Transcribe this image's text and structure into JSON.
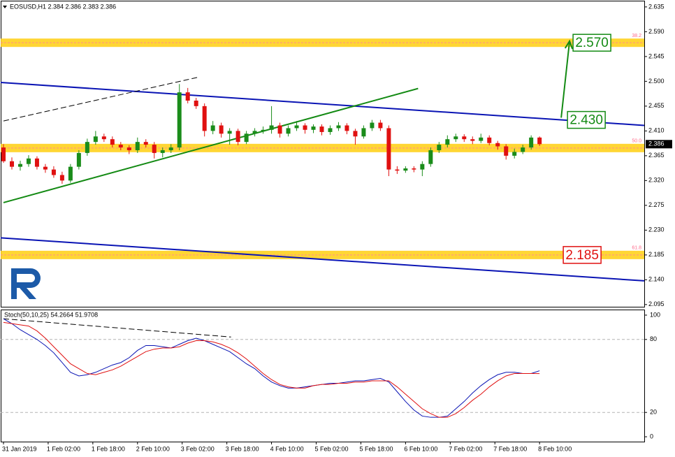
{
  "chart_data": [
    {
      "type": "candlestick",
      "title": "EOSUSD,H1  2.384 2.386 2.383 2.386",
      "x": [
        0,
        3,
        6,
        9,
        12,
        15,
        18,
        21,
        24,
        27,
        30,
        33,
        36,
        39,
        42,
        45,
        48,
        51,
        54,
        57,
        60,
        63,
        66,
        69,
        72,
        75,
        78,
        81,
        84,
        87,
        90,
        93,
        96,
        99,
        102,
        105,
        108,
        111,
        114,
        117,
        120,
        123,
        126,
        129,
        132,
        135,
        138,
        141,
        144,
        147,
        150,
        153,
        156,
        159,
        162,
        165,
        168,
        171,
        174,
        177,
        180,
        183,
        186,
        189,
        192
      ],
      "open": [
        2.38,
        2.355,
        2.345,
        2.35,
        2.36,
        2.345,
        2.34,
        2.33,
        2.32,
        2.345,
        2.37,
        2.39,
        2.4,
        2.395,
        2.385,
        2.38,
        2.375,
        2.39,
        2.385,
        2.37,
        2.375,
        2.38,
        2.48,
        2.465,
        2.455,
        2.41,
        2.42,
        2.405,
        2.41,
        2.39,
        2.405,
        2.41,
        2.412,
        2.42,
        2.405,
        2.415,
        2.42,
        2.412,
        2.418,
        2.408,
        2.415,
        2.42,
        2.41,
        2.4,
        2.415,
        2.425,
        2.415,
        2.34,
        2.338,
        2.342,
        2.34,
        2.35,
        2.375,
        2.385,
        2.395,
        2.4,
        2.395,
        2.392,
        2.398,
        2.388,
        2.382,
        2.365,
        2.372,
        2.38,
        2.398
      ],
      "high": [
        2.386,
        2.362,
        2.356,
        2.366,
        2.364,
        2.35,
        2.346,
        2.336,
        2.35,
        2.375,
        2.396,
        2.41,
        2.405,
        2.4,
        2.39,
        2.384,
        2.398,
        2.395,
        2.39,
        2.38,
        2.386,
        2.495,
        2.488,
        2.47,
        2.46,
        2.428,
        2.425,
        2.415,
        2.414,
        2.41,
        2.415,
        2.418,
        2.455,
        2.425,
        2.42,
        2.428,
        2.424,
        2.422,
        2.422,
        2.42,
        2.426,
        2.424,
        2.414,
        2.42,
        2.43,
        2.43,
        2.42,
        2.346,
        2.346,
        2.346,
        2.355,
        2.38,
        2.39,
        2.402,
        2.405,
        2.404,
        2.4,
        2.405,
        2.402,
        2.392,
        2.386,
        2.378,
        2.385,
        2.402,
        2.4
      ],
      "low": [
        2.352,
        2.34,
        2.338,
        2.345,
        2.34,
        2.334,
        2.325,
        2.314,
        2.316,
        2.34,
        2.365,
        2.385,
        2.39,
        2.38,
        2.375,
        2.368,
        2.37,
        2.38,
        2.36,
        2.362,
        2.37,
        2.375,
        2.46,
        2.45,
        2.4,
        2.404,
        2.398,
        2.385,
        2.384,
        2.386,
        2.4,
        2.405,
        2.405,
        2.398,
        2.4,
        2.41,
        2.405,
        2.406,
        2.402,
        2.403,
        2.41,
        2.404,
        2.385,
        2.396,
        2.41,
        2.41,
        2.328,
        2.332,
        2.334,
        2.335,
        2.328,
        2.345,
        2.37,
        2.38,
        2.39,
        2.39,
        2.386,
        2.388,
        2.384,
        2.376,
        2.358,
        2.36,
        2.368,
        2.376,
        2.383
      ],
      "close": [
        2.355,
        2.345,
        2.35,
        2.36,
        2.345,
        2.34,
        2.33,
        2.32,
        2.345,
        2.37,
        2.39,
        2.4,
        2.395,
        2.385,
        2.38,
        2.375,
        2.39,
        2.385,
        2.37,
        2.375,
        2.38,
        2.48,
        2.465,
        2.455,
        2.41,
        2.42,
        2.405,
        2.41,
        2.39,
        2.405,
        2.41,
        2.412,
        2.42,
        2.405,
        2.415,
        2.42,
        2.412,
        2.418,
        2.408,
        2.415,
        2.42,
        2.41,
        2.4,
        2.415,
        2.425,
        2.415,
        2.34,
        2.338,
        2.342,
        2.34,
        2.35,
        2.375,
        2.385,
        2.395,
        2.4,
        2.395,
        2.392,
        2.398,
        2.388,
        2.382,
        2.365,
        2.372,
        2.38,
        2.398,
        2.386
      ],
      "up_color": "#1a8c1a",
      "down_color": "#e01010",
      "xlim": [
        -1,
        229.5
      ],
      "ylim": [
        2.091,
        2.645
      ],
      "yticks": [
        2.635,
        {
          "value": 2.59,
          "label": "2.590"
        },
        2.545,
        {
          "value": 2.5,
          "label": "2.500"
        },
        2.455,
        {
          "value": 2.41,
          "label": "2.410"
        },
        2.365,
        {
          "value": 2.32,
          "label": "2.320"
        },
        2.275,
        {
          "value": 2.23,
          "label": "2.230"
        },
        2.185,
        {
          "value": 2.14,
          "label": "2.140"
        },
        2.095
      ],
      "trendlines": [
        {
          "x": [
            -1,
            229.5
          ],
          "y": [
            2.498,
            2.42
          ],
          "color": "#0a14b4",
          "dashed": false
        },
        {
          "x": [
            0,
            148.5
          ],
          "y": [
            2.28,
            2.487
          ],
          "color": "#138a13",
          "dashed": false
        },
        {
          "x": [
            0,
            70.25
          ],
          "y": [
            2.428,
            2.508
          ],
          "color": "#000000",
          "dashed": true
        },
        {
          "x": [
            -1,
            229.5
          ],
          "y": [
            2.216,
            2.138
          ],
          "color": "#0a14b4",
          "dashed": false
        }
      ],
      "levels": [
        {
          "value": 2.57,
          "label": "38.2"
        },
        {
          "value": 2.379,
          "label": "50.0"
        },
        {
          "value": 2.185,
          "label": "61.8"
        }
      ],
      "level_color": "#ffd21e",
      "annotations": [
        {
          "x": 204,
          "value": 2.57,
          "label": "2.570",
          "color": "#138a13"
        },
        {
          "x": 202,
          "value": 2.43,
          "label": "2.430",
          "color": "#138a13"
        },
        {
          "x": 200.5,
          "value": 2.185,
          "label": "2.185",
          "color": "#e01010"
        }
      ],
      "arrow": {
        "x": [
          199.75,
          202.75
        ],
        "y": [
          2.434,
          2.573
        ],
        "color": "#138a13"
      },
      "last_price": {
        "value": 2.386,
        "label": "2.386"
      }
    },
    {
      "type": "line",
      "title": "Stoch(50,10,25) 54.2664 51.9708",
      "x": [
        0,
        3,
        6,
        9,
        12,
        15,
        18,
        21,
        24,
        27,
        30,
        33,
        36,
        39,
        42,
        45,
        48,
        51,
        54,
        57,
        60,
        63,
        66,
        69,
        72,
        75,
        78,
        81,
        84,
        87,
        90,
        93,
        96,
        99,
        102,
        105,
        108,
        111,
        114,
        117,
        120,
        123,
        126,
        129,
        132,
        135,
        138,
        141,
        144,
        147,
        150,
        153,
        156,
        159,
        162,
        165,
        168,
        171,
        174,
        177,
        180,
        183,
        186,
        189,
        192
      ],
      "series": [
        {
          "color": "#0a14b4",
          "values": [
            97,
            93,
            88,
            84,
            80,
            75,
            69,
            61,
            53,
            50,
            51,
            53,
            56,
            59,
            61,
            65,
            71,
            75,
            75,
            74,
            73,
            76,
            79,
            81,
            79,
            76,
            73,
            70,
            65,
            60,
            56,
            50,
            45,
            42,
            40,
            40,
            41,
            42,
            43,
            44,
            44,
            45,
            46,
            46,
            47,
            48,
            45,
            37,
            29,
            22,
            17,
            16,
            16,
            17,
            23,
            29,
            36,
            42,
            47,
            51,
            53,
            53,
            52,
            52,
            54.2664
          ]
        },
        {
          "color": "#e01010",
          "values": [
            94,
            93,
            92,
            91,
            87,
            81,
            74,
            67,
            60,
            56,
            52,
            51,
            53,
            55,
            58,
            62,
            66,
            70,
            72,
            73,
            73,
            74,
            77,
            79,
            79,
            78,
            76,
            73,
            69,
            64,
            58,
            52,
            47,
            43,
            41,
            40,
            40,
            42,
            43,
            43,
            44,
            44,
            45,
            45,
            46,
            46,
            46,
            41,
            35,
            29,
            23,
            19,
            16,
            16,
            19,
            24,
            30,
            35,
            41,
            46,
            50,
            52,
            52,
            52,
            51.9708
          ]
        }
      ],
      "xlim": [
        -1,
        229.5
      ],
      "ylim": [
        -4,
        104
      ],
      "yticks": [
        100,
        80,
        20,
        0
      ],
      "levels": [
        80,
        20
      ],
      "trendlines": [
        {
          "x": [
            0,
            81.5
          ],
          "y": [
            97,
            82
          ],
          "color": "#000000",
          "dashed": true
        }
      ],
      "xticks": [
        {
          "value": 0,
          "label": "31 Jan 2019"
        },
        {
          "value": 16,
          "label": "1 Feb 02:00"
        },
        {
          "value": 32,
          "label": "1 Feb 18:00"
        },
        {
          "value": 48,
          "label": "2 Feb 10:00"
        },
        {
          "value": 64,
          "label": "3 Feb 02:00"
        },
        {
          "value": 80,
          "label": "3 Feb 18:00"
        },
        {
          "value": 96,
          "label": "4 Feb 10:00"
        },
        {
          "value": 112,
          "label": "5 Feb 02:00"
        },
        {
          "value": 128,
          "label": "5 Feb 18:00"
        },
        {
          "value": 144,
          "label": "6 Feb 10:00"
        },
        {
          "value": 160,
          "label": "7 Feb 02:00"
        },
        {
          "value": 176,
          "label": "7 Feb 18:00"
        },
        {
          "value": 192,
          "label": "8 Feb 10:00"
        }
      ]
    }
  ]
}
